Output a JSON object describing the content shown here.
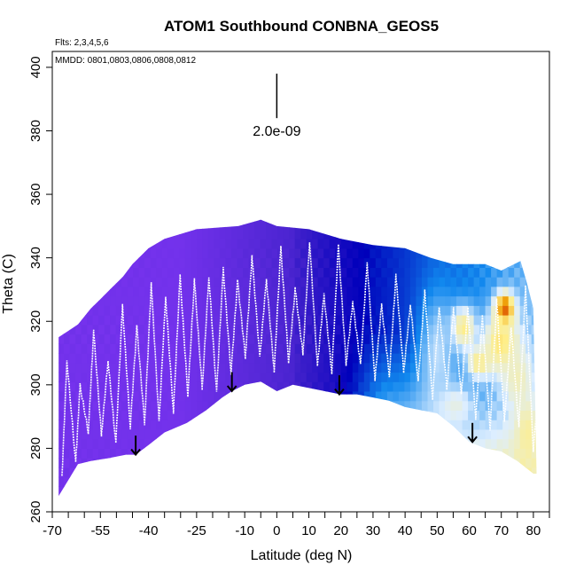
{
  "chart_data": {
    "type": "heatmap",
    "title": "ATOM1 Southbound CONBNA_GEOS5",
    "notes": [
      "Flts: 2,3,4,5,6",
      "MMDD: 0801,0803,0806,0808,0812"
    ],
    "xlabel": "Latitude (deg N)",
    "ylabel": "Theta (C)",
    "xlim": [
      -70,
      85
    ],
    "ylim": [
      260,
      405
    ],
    "x_ticks": [
      -70,
      -55,
      -40,
      -25,
      -10,
      0,
      10,
      20,
      30,
      40,
      50,
      60,
      70,
      80
    ],
    "x_tick_labels": [
      "-70",
      "-55",
      "-40",
      "-25",
      "-10",
      "0",
      "10",
      "20",
      "30",
      "40",
      "50",
      "60",
      "70",
      "80"
    ],
    "x_minor_ticks": [
      -65,
      -60,
      -50,
      -45,
      -35,
      -30,
      -20,
      -15,
      -5,
      5,
      15,
      25,
      35,
      45,
      55,
      65,
      75,
      85
    ],
    "y_ticks": [
      260,
      280,
      300,
      320,
      340,
      360,
      380,
      400
    ],
    "y_tick_labels": [
      "260",
      "280",
      "300",
      "320",
      "340",
      "360",
      "380",
      "400"
    ],
    "scale_bar": {
      "label": "2.0e-09",
      "x": 0,
      "y_bottom": 384,
      "y_top": 398
    },
    "arrows": [
      {
        "x": -44,
        "y_top": 284,
        "y_bottom": 278
      },
      {
        "x": -14,
        "y_top": 304,
        "y_bottom": 298
      },
      {
        "x": 19.5,
        "y_top": 303,
        "y_bottom": 297
      },
      {
        "x": 61,
        "y_top": 288,
        "y_bottom": 282
      }
    ],
    "bottom_boundary": [
      [
        -68,
        265
      ],
      [
        -65,
        270
      ],
      [
        -62,
        275
      ],
      [
        -58,
        276
      ],
      [
        -52,
        277
      ],
      [
        -47,
        278
      ],
      [
        -44,
        278
      ],
      [
        -40,
        281
      ],
      [
        -35,
        285
      ],
      [
        -28,
        288
      ],
      [
        -22,
        292
      ],
      [
        -17,
        296
      ],
      [
        -14,
        298
      ],
      [
        -10,
        300
      ],
      [
        -5,
        301
      ],
      [
        0,
        298
      ],
      [
        5,
        300
      ],
      [
        10,
        299
      ],
      [
        15,
        298
      ],
      [
        20,
        297
      ],
      [
        25,
        297
      ],
      [
        30,
        296
      ],
      [
        35,
        295
      ],
      [
        40,
        293
      ],
      [
        45,
        292
      ],
      [
        50,
        291
      ],
      [
        55,
        287
      ],
      [
        60,
        282
      ],
      [
        65,
        280
      ],
      [
        70,
        279
      ],
      [
        75,
        276
      ],
      [
        80,
        272
      ]
    ],
    "top_boundary": [
      [
        -68,
        315
      ],
      [
        -65,
        317
      ],
      [
        -62,
        319
      ],
      [
        -58,
        324
      ],
      [
        -55,
        327
      ],
      [
        -52,
        330
      ],
      [
        -48,
        334
      ],
      [
        -45,
        338
      ],
      [
        -40,
        343
      ],
      [
        -35,
        346
      ],
      [
        -25,
        349
      ],
      [
        -12,
        350
      ],
      [
        -5,
        352
      ],
      [
        0,
        350
      ],
      [
        10,
        349
      ],
      [
        20,
        346
      ],
      [
        25,
        345
      ],
      [
        30,
        344
      ],
      [
        40,
        343
      ],
      [
        48,
        340
      ],
      [
        55,
        338
      ],
      [
        65,
        338
      ],
      [
        70,
        336
      ],
      [
        76,
        339
      ],
      [
        78,
        332
      ],
      [
        80,
        324
      ],
      [
        81,
        272
      ]
    ],
    "color_scale": [
      {
        "position": 0.0,
        "color": "#7733ee"
      },
      {
        "position": 0.25,
        "color": "#4422cc"
      },
      {
        "position": 0.4,
        "color": "#0000bb"
      },
      {
        "position": 0.55,
        "color": "#1188ee"
      },
      {
        "position": 0.68,
        "color": "#ddeeff"
      },
      {
        "position": 0.8,
        "color": "#ffee88"
      },
      {
        "position": 0.9,
        "color": "#ee9900"
      },
      {
        "position": 1.0,
        "color": "#cc1111"
      }
    ],
    "hotspots": [
      {
        "x": 71,
        "y": 324,
        "rx": 3,
        "ry": 5,
        "value": 1.0
      },
      {
        "x": 70,
        "y": 313,
        "rx": 6,
        "ry": 10,
        "value": 0.82
      },
      {
        "x": 58,
        "y": 318,
        "rx": 4,
        "ry": 7,
        "value": 0.82
      },
      {
        "x": 63,
        "y": 307,
        "rx": 4,
        "ry": 5,
        "value": 0.8
      },
      {
        "x": 78,
        "y": 285,
        "rx": 4,
        "ry": 12,
        "value": 0.78
      },
      {
        "x": 55,
        "y": 294,
        "rx": 6,
        "ry": 6,
        "value": 0.72
      },
      {
        "x": 75,
        "y": 302,
        "rx": 5,
        "ry": 10,
        "value": 0.75
      },
      {
        "x": 50,
        "y": 310,
        "rx": 6,
        "ry": 20,
        "value": 0.66
      }
    ],
    "flight_path_color": "#ffffff"
  }
}
